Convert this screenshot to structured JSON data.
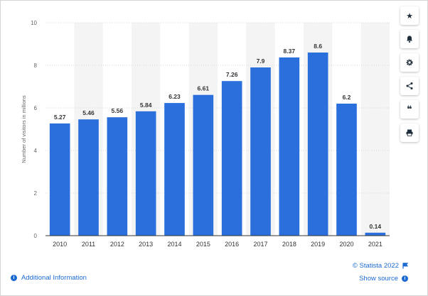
{
  "chart_data": {
    "type": "bar",
    "categories": [
      "2010",
      "2011",
      "2012",
      "2013",
      "2014",
      "2015",
      "2016",
      "2017",
      "2018",
      "2019",
      "2020",
      "2021"
    ],
    "values": [
      5.27,
      5.46,
      5.56,
      5.84,
      6.23,
      6.61,
      7.26,
      7.9,
      8.37,
      8.6,
      6.2,
      0.14
    ],
    "value_labels": [
      "5.27",
      "5.46",
      "5.56",
      "5.84",
      "6.23",
      "6.61",
      "7.26",
      "7.9",
      "8.37",
      "8.6",
      "6.2",
      "0.14"
    ],
    "ylabel": "Number of visitors in millions",
    "xlabel": "",
    "ylim": [
      0,
      10
    ],
    "yticks": [
      "0",
      "2",
      "4",
      "6",
      "8",
      "10"
    ],
    "grid": true,
    "bar_color": "#2a6fdb"
  },
  "toolbar": [
    {
      "name": "star-icon",
      "glyph": "★"
    },
    {
      "name": "bell-icon",
      "glyph": "bell"
    },
    {
      "name": "gear-icon",
      "glyph": "gear"
    },
    {
      "name": "share-icon",
      "glyph": "share"
    },
    {
      "name": "quote-icon",
      "glyph": "❝"
    },
    {
      "name": "print-icon",
      "glyph": "print"
    }
  ],
  "footer": {
    "additional_info": "Additional Information",
    "credit": "© Statista 2022",
    "show_source": "Show source"
  },
  "colors": {
    "link": "#1b6ad1",
    "bar": "#2a6fdb"
  }
}
